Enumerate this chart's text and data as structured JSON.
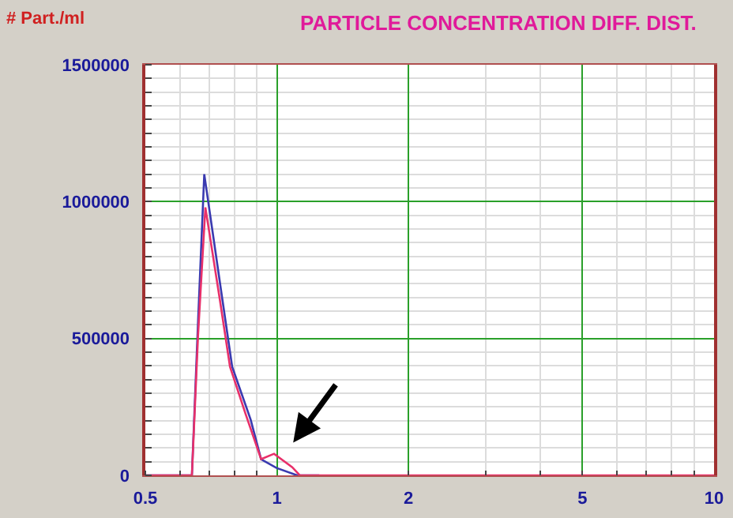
{
  "chart_data": {
    "type": "line",
    "title": "PARTICLE CONCENTRATION DIFF. DIST.",
    "ylabel": "# Part./ml",
    "log": "x",
    "xlim": [
      0.5,
      10
    ],
    "xticks": [
      0.5,
      1,
      2,
      5,
      10
    ],
    "ylim": [
      0,
      1500000
    ],
    "yticks": [
      0,
      500000,
      1000000,
      1500000
    ],
    "grid": true,
    "marker": "none",
    "line_style": "solid",
    "series": [
      {
        "color": "#3a3ab0",
        "x": [
          0.5,
          0.639,
          0.66,
          0.682,
          0.75,
          0.79,
          0.871,
          0.92,
          0.998,
          1.113,
          1.25
        ],
        "values": [
          0,
          0,
          560000,
          1100000,
          644000,
          397000,
          203000,
          59000,
          27000,
          0,
          0
        ]
      },
      {
        "color": "#e8306a",
        "x": [
          0.5,
          0.639,
          0.66,
          0.686,
          0.74,
          0.781,
          0.848,
          0.92,
          0.985,
          1.084,
          1.128,
          10
        ],
        "values": [
          0,
          0,
          511000,
          979000,
          644000,
          397000,
          224000,
          59000,
          79000,
          30000,
          0,
          0
        ]
      }
    ]
  }
}
